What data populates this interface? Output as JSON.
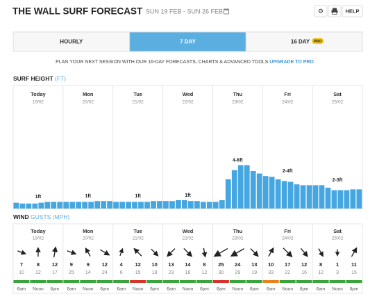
{
  "header": {
    "title": "THE WALL SURF FORECAST",
    "dates": "SUN 19 FEB - SUN 26 FEB",
    "help": "HELP"
  },
  "tabs": {
    "active": 1,
    "items": [
      {
        "label": "HOURLY"
      },
      {
        "label": "7 DAY"
      },
      {
        "label": "16 DAY",
        "badge": "PRO"
      }
    ]
  },
  "promo": {
    "text": "PLAN YOUR NEXT SESSION WITH OUR 16-DAY FORECASTS, CHARTS & ADVANCED TOOLS ",
    "link": "UPGRADE TO PRO"
  },
  "surf": {
    "title": "SURF HEIGHT ",
    "unit": "(FT)",
    "color": "#45a6e0",
    "days": [
      {
        "day": "Today",
        "date": "19/02",
        "label": "1ft",
        "heights": [
          0.7,
          0.6,
          0.6,
          0.6,
          0.7,
          0.8,
          0.8,
          0.8
        ]
      },
      {
        "day": "Mon",
        "date": "20/02",
        "label": "1ft",
        "heights": [
          0.8,
          0.8,
          0.8,
          0.8,
          0.8,
          0.9,
          0.9,
          0.9
        ]
      },
      {
        "day": "Tue",
        "date": "21/02",
        "label": "1ft",
        "heights": [
          0.8,
          0.8,
          0.8,
          0.8,
          0.8,
          0.8,
          0.9,
          0.9
        ]
      },
      {
        "day": "Wed",
        "date": "22/02",
        "label": "1ft",
        "heights": [
          0.9,
          0.9,
          1,
          1,
          0.9,
          0.9,
          0.8,
          0.8
        ]
      },
      {
        "day": "Thu",
        "date": "23/02",
        "label": "4-6ft",
        "heights": [
          0.8,
          1,
          3.5,
          4.6,
          5.2,
          5.2,
          4.5,
          4.2
        ]
      },
      {
        "day": "Fri",
        "date": "24/02",
        "label": "2-4ft",
        "heights": [
          3.9,
          3.8,
          3.5,
          3.3,
          3.2,
          2.9,
          2.8,
          2.8
        ]
      },
      {
        "day": "Sat",
        "date": "25/02",
        "label": "2-3ft",
        "heights": [
          2.8,
          2.8,
          2.5,
          2.2,
          2.2,
          2.2,
          2.3,
          2.3
        ]
      }
    ]
  },
  "wind": {
    "title": "WIND ",
    "unit": "GUSTS (MPH)",
    "times": [
      "6am",
      "Noon",
      "6pm"
    ],
    "days": [
      {
        "day": "Today",
        "date": "19/02",
        "speed": [
          7,
          8,
          12
        ],
        "gusts": [
          10,
          12,
          17
        ],
        "direction": [
          20,
          270,
          280
        ],
        "rating": [
          "#3aa53a",
          "#3aa53a",
          "#3aa53a"
        ]
      },
      {
        "day": "Mon",
        "date": "20/02",
        "speed": [
          9,
          9,
          12
        ],
        "gusts": [
          25,
          14,
          24
        ],
        "direction": [
          20,
          240,
          30
        ],
        "rating": [
          "#3aa53a",
          "#3aa53a",
          "#3aa53a"
        ]
      },
      {
        "day": "Tue",
        "date": "21/02",
        "speed": [
          4,
          12,
          10
        ],
        "gusts": [
          6,
          15,
          18
        ],
        "direction": [
          290,
          225,
          45
        ],
        "rating": [
          "#3aa53a",
          "#d9342b",
          "#3aa53a"
        ]
      },
      {
        "day": "Wed",
        "date": "22/02",
        "speed": [
          13,
          14,
          8
        ],
        "gusts": [
          23,
          18,
          12
        ],
        "direction": [
          135,
          45,
          80
        ],
        "rating": [
          "#3aa53a",
          "#3aa53a",
          "#3aa53a"
        ]
      },
      {
        "day": "Thu",
        "date": "23/02",
        "speed": [
          25,
          24,
          13
        ],
        "gusts": [
          30,
          29,
          19
        ],
        "direction": [
          150,
          150,
          45
        ],
        "rating": [
          "#d9342b",
          "#3aa53a",
          "#3aa53a"
        ]
      },
      {
        "day": "Fri",
        "date": "24/02",
        "speed": [
          10,
          17,
          12
        ],
        "gusts": [
          33,
          22,
          16
        ],
        "direction": [
          300,
          45,
          50
        ],
        "rating": [
          "#e8821e",
          "#3aa53a",
          "#3aa53a"
        ]
      },
      {
        "day": "Sat",
        "date": "25/02",
        "speed": [
          8,
          1,
          11
        ],
        "gusts": [
          12,
          3,
          15
        ],
        "direction": [
          60,
          90,
          300
        ],
        "rating": [
          "#3aa53a",
          "#3aa53a",
          "#3aa53a"
        ]
      }
    ]
  }
}
